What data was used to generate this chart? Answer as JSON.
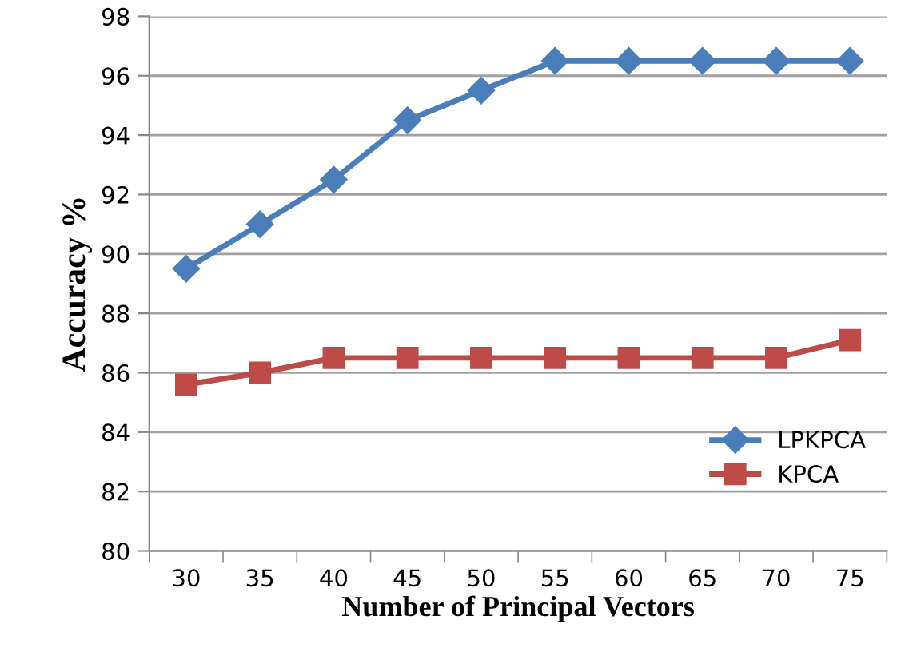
{
  "chart_data": {
    "type": "line",
    "xlabel": "Number of Principal Vectors",
    "ylabel": "Accuracy %",
    "categories": [
      "30",
      "35",
      "40",
      "45",
      "50",
      "55",
      "60",
      "65",
      "70",
      "75"
    ],
    "series": [
      {
        "name": "LPKPCA",
        "color": "#4a7ebb",
        "marker": "diamond",
        "values": [
          89.5,
          91,
          92.5,
          94.5,
          95.5,
          96.5,
          96.5,
          96.5,
          96.5,
          96.5
        ]
      },
      {
        "name": "KPCA",
        "color": "#be4b48",
        "marker": "square",
        "values": [
          85.6,
          86,
          86.5,
          86.5,
          86.5,
          86.5,
          86.5,
          86.5,
          86.5,
          87.1
        ]
      }
    ],
    "ylim": [
      80,
      98
    ],
    "yticks": [
      80,
      82,
      84,
      86,
      88,
      90,
      92,
      94,
      96,
      98
    ],
    "grid": "y",
    "legend": "bottom right",
    "line_style": "solid"
  }
}
